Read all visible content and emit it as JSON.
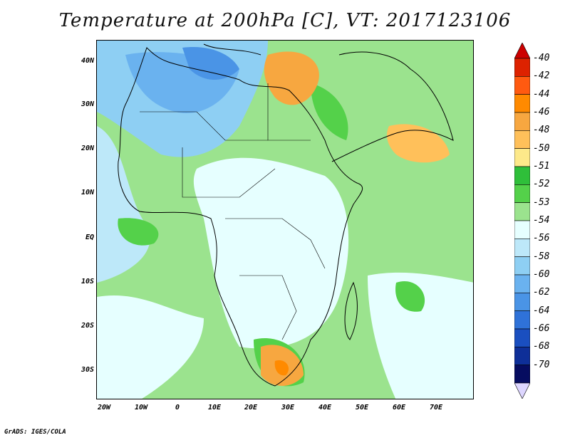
{
  "title": "Temperature at 200hPa [C], VT: 2017123106",
  "footer": "GrADS: IGES/COLA",
  "map": {
    "lat_ticks": [
      "40N",
      "30N",
      "20N",
      "10N",
      "EQ",
      "10S",
      "20S",
      "30S"
    ],
    "lon_ticks": [
      "20W",
      "10W",
      "0",
      "10E",
      "20E",
      "30E",
      "40E",
      "50E",
      "60E",
      "70E"
    ]
  },
  "legend": {
    "labels": [
      "-40",
      "-42",
      "-44",
      "-46",
      "-48",
      "-50",
      "-51",
      "-52",
      "-53",
      "-54",
      "-56",
      "-58",
      "-60",
      "-62",
      "-64",
      "-66",
      "-68",
      "-70"
    ],
    "colors": [
      "#dd2200",
      "#ff5a10",
      "#ff8a00",
      "#f7a740",
      "#ffc05a",
      "#fde98a",
      "#2fbf3a",
      "#54d14a",
      "#9be38e",
      "#e6ffff",
      "#bde8f9",
      "#8ecff3",
      "#6ab2ef",
      "#4a94e6",
      "#2f72d8",
      "#1a4fc0",
      "#0e2f98",
      "#060c60"
    ],
    "top_arrow_color": "#cc0000",
    "bottom_arrow_color": "#ddd6ff"
  },
  "colors": {
    "background_field": "#9be38e",
    "boundaries": "#000000"
  }
}
